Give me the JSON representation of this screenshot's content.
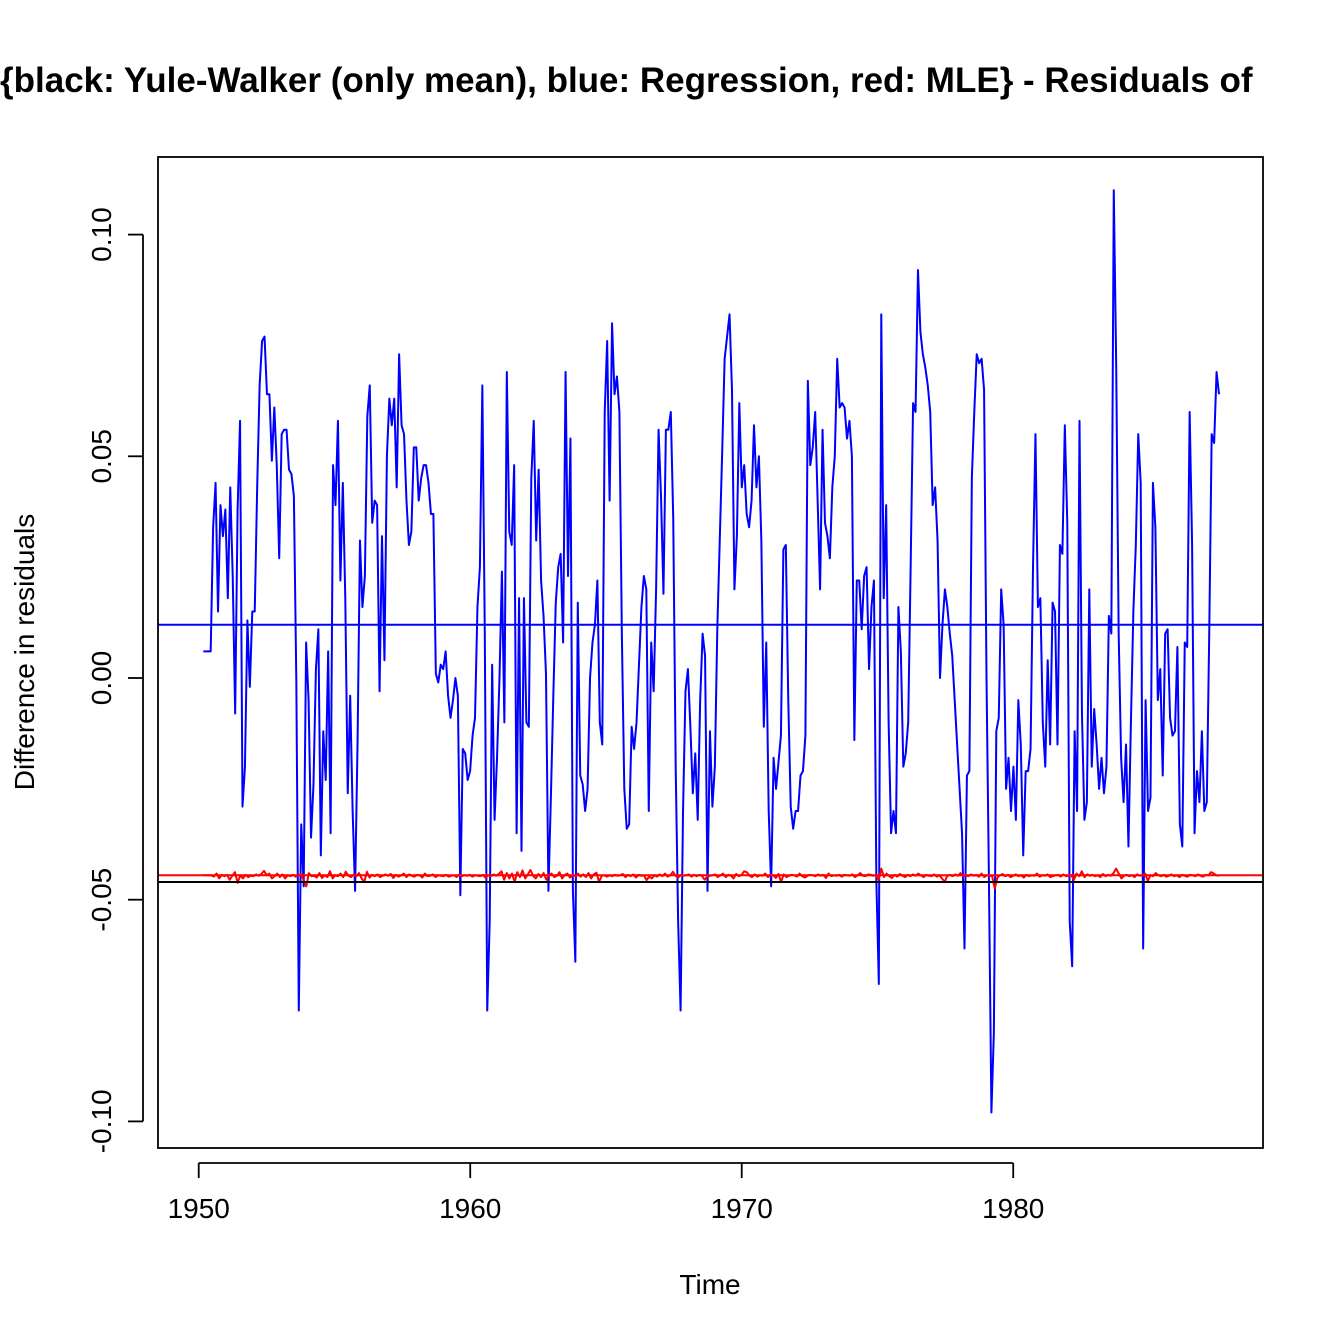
{
  "chart_data": {
    "type": "line",
    "title": "{black: Yule-Walker (only mean), blue: Regression, red: MLE} - Residuals of",
    "xlabel": "Time",
    "ylabel": "Difference in residuals",
    "xlim": [
      1948.5,
      1989.2
    ],
    "ylim": [
      -0.106,
      0.1175
    ],
    "x_ticks": [
      1950,
      1960,
      1970,
      1980
    ],
    "x_tick_labels": [
      "1950",
      "1960",
      "1970",
      "1980"
    ],
    "y_ticks": [
      -0.1,
      -0.05,
      0.0,
      0.05,
      0.1
    ],
    "y_tick_labels": [
      "-0.10",
      "-0.05",
      "0.00",
      "0.05",
      "0.10"
    ],
    "grid": false,
    "legend": "none",
    "colors": {
      "black": "#000000",
      "blue": "#0000ff",
      "red": "#ff0000"
    },
    "hlines": [
      {
        "color": "#000000",
        "y": -0.046
      },
      {
        "color": "#0000ff",
        "y": 0.012
      },
      {
        "color": "#ff0000",
        "y": -0.0445
      }
    ],
    "series": [
      {
        "color": "#0000ff",
        "x_start": 1950.17,
        "x_end": 1987.58,
        "values": [
          0.006,
          0.006,
          0.006,
          0.006,
          0.034,
          0.044,
          0.015,
          0.039,
          0.032,
          0.038,
          0.018,
          0.043,
          0.023,
          -0.008,
          0.038,
          0.058,
          -0.029,
          -0.02,
          0.013,
          -0.002,
          0.015,
          0.015,
          0.043,
          0.066,
          0.076,
          0.077,
          0.064,
          0.064,
          0.049,
          0.061,
          0.048,
          0.027,
          0.055,
          0.056,
          0.056,
          0.047,
          0.046,
          0.041,
          -0.001,
          -0.075,
          -0.033,
          -0.047,
          0.008,
          -0.005,
          -0.036,
          -0.024,
          0.002,
          0.011,
          -0.04,
          -0.012,
          -0.023,
          0.006,
          -0.035,
          0.048,
          0.039,
          0.058,
          0.022,
          0.044,
          0.018,
          -0.026,
          -0.004,
          -0.03,
          -0.048,
          -0.015,
          0.031,
          0.016,
          0.023,
          0.059,
          0.066,
          0.035,
          0.04,
          0.039,
          -0.003,
          0.032,
          0.004,
          0.05,
          0.063,
          0.057,
          0.063,
          0.043,
          0.073,
          0.057,
          0.055,
          0.04,
          0.03,
          0.033,
          0.052,
          0.052,
          0.04,
          0.045,
          0.048,
          0.048,
          0.044,
          0.037,
          0.037,
          0.001,
          -0.001,
          0.003,
          0.002,
          0.006,
          -0.004,
          -0.009,
          -0.005,
          0.0,
          -0.004,
          -0.049,
          -0.016,
          -0.017,
          -0.023,
          -0.021,
          -0.013,
          -0.009,
          0.016,
          0.025,
          0.066,
          0.01,
          -0.075,
          -0.055,
          0.003,
          -0.032,
          -0.018,
          0.0,
          0.024,
          -0.01,
          0.069,
          0.033,
          0.03,
          0.048,
          -0.035,
          0.018,
          -0.039,
          0.018,
          -0.01,
          -0.011,
          0.045,
          0.058,
          0.031,
          0.047,
          0.022,
          0.014,
          0.001,
          -0.048,
          -0.027,
          -0.004,
          0.017,
          0.025,
          0.028,
          0.008,
          0.069,
          0.023,
          0.054,
          -0.048,
          -0.064,
          0.017,
          -0.022,
          -0.024,
          -0.03,
          -0.025,
          0.0,
          0.008,
          0.012,
          0.022,
          -0.01,
          -0.015,
          0.06,
          0.076,
          0.04,
          0.08,
          0.064,
          0.068,
          0.06,
          0.01,
          -0.025,
          -0.034,
          -0.033,
          -0.011,
          -0.016,
          -0.01,
          0.003,
          0.016,
          0.023,
          0.02,
          -0.03,
          0.008,
          -0.003,
          0.02,
          0.056,
          0.041,
          0.019,
          0.056,
          0.056,
          0.06,
          0.036,
          -0.02,
          -0.055,
          -0.075,
          -0.03,
          -0.003,
          0.002,
          -0.011,
          -0.026,
          -0.017,
          -0.032,
          -0.005,
          0.01,
          0.005,
          -0.048,
          -0.012,
          -0.029,
          -0.02,
          0.011,
          0.031,
          0.051,
          0.072,
          0.077,
          0.082,
          0.065,
          0.02,
          0.032,
          0.062,
          0.043,
          0.048,
          0.037,
          0.034,
          0.04,
          0.057,
          0.043,
          0.05,
          0.031,
          -0.011,
          0.008,
          -0.03,
          -0.047,
          -0.018,
          -0.025,
          -0.019,
          -0.013,
          0.029,
          0.03,
          -0.005,
          -0.029,
          -0.034,
          -0.03,
          -0.03,
          -0.022,
          -0.021,
          -0.013,
          0.067,
          0.048,
          0.052,
          0.06,
          0.04,
          0.02,
          0.056,
          0.035,
          0.032,
          0.027,
          0.043,
          0.05,
          0.072,
          0.061,
          0.062,
          0.061,
          0.054,
          0.058,
          0.05,
          -0.014,
          0.022,
          0.022,
          0.011,
          0.023,
          0.025,
          0.002,
          0.016,
          0.022,
          -0.046,
          -0.069,
          0.082,
          0.018,
          0.039,
          -0.01,
          -0.035,
          -0.03,
          -0.035,
          0.016,
          0.006,
          -0.02,
          -0.017,
          -0.01,
          0.025,
          0.062,
          0.06,
          0.092,
          0.078,
          0.073,
          0.07,
          0.066,
          0.06,
          0.039,
          0.043,
          0.031,
          0.0,
          0.012,
          0.02,
          0.016,
          0.01,
          0.005,
          -0.005,
          -0.015,
          -0.025,
          -0.035,
          -0.061,
          -0.022,
          -0.021,
          0.045,
          0.06,
          0.073,
          0.071,
          0.072,
          0.065,
          0.0,
          -0.046,
          -0.098,
          -0.08,
          -0.012,
          -0.009,
          0.02,
          0.012,
          -0.025,
          -0.018,
          -0.03,
          -0.02,
          -0.032,
          -0.005,
          -0.015,
          -0.04,
          -0.021,
          -0.021,
          -0.016,
          0.025,
          0.055,
          0.016,
          0.018,
          -0.01,
          -0.02,
          0.004,
          -0.015,
          0.017,
          0.015,
          -0.015,
          0.03,
          0.028,
          0.057,
          0.035,
          -0.055,
          -0.065,
          -0.012,
          -0.03,
          0.058,
          -0.008,
          -0.032,
          -0.028,
          0.02,
          -0.02,
          -0.007,
          -0.015,
          -0.025,
          -0.018,
          -0.026,
          -0.02,
          0.014,
          0.01,
          0.11,
          0.07,
          0.01,
          -0.018,
          -0.028,
          -0.015,
          -0.038,
          -0.01,
          0.015,
          0.03,
          0.055,
          0.044,
          -0.061,
          -0.005,
          -0.03,
          -0.027,
          0.044,
          0.034,
          -0.005,
          0.002,
          -0.022,
          0.01,
          0.011,
          -0.009,
          -0.013,
          -0.012,
          0.007,
          -0.033,
          -0.038,
          0.008,
          0.007,
          0.06,
          0.03,
          -0.035,
          -0.021,
          -0.028,
          -0.012,
          -0.03,
          -0.028,
          0.01,
          0.055,
          0.053,
          0.069,
          0.064
        ]
      },
      {
        "color": "#ff0000",
        "x_start": 1950.17,
        "x_end": 1987.58,
        "values": [
          -0.0445,
          -0.0445,
          -0.0445,
          -0.0445,
          -0.0448,
          -0.0441,
          -0.0452,
          -0.0444,
          -0.0447,
          -0.0444,
          -0.0455,
          -0.0446,
          -0.0438,
          -0.0462,
          -0.0445,
          -0.0452,
          -0.0444,
          -0.0449,
          -0.0446,
          -0.0447,
          -0.0443,
          -0.0446,
          -0.0442,
          -0.0435,
          -0.0445,
          -0.0441,
          -0.0452,
          -0.0447,
          -0.0441,
          -0.0449,
          -0.0443,
          -0.0452,
          -0.0445,
          -0.0447,
          -0.0444,
          -0.0448,
          -0.0446,
          -0.0442,
          -0.0455,
          -0.047,
          -0.044,
          -0.0447,
          -0.0446,
          -0.045,
          -0.044,
          -0.0451,
          -0.0445,
          -0.0449,
          -0.0436,
          -0.0452,
          -0.0445,
          -0.0447,
          -0.0441,
          -0.0449,
          -0.0437,
          -0.0446,
          -0.0449,
          -0.0443,
          -0.0447,
          -0.044,
          -0.0452,
          -0.046,
          -0.0437,
          -0.045,
          -0.0444,
          -0.0447,
          -0.0443,
          -0.0449,
          -0.0446,
          -0.0443,
          -0.0446,
          -0.0442,
          -0.0451,
          -0.0444,
          -0.0448,
          -0.0445,
          -0.0441,
          -0.0449,
          -0.0443,
          -0.0446,
          -0.0448,
          -0.0444,
          -0.0445,
          -0.045,
          -0.0441,
          -0.0447,
          -0.0446,
          -0.0443,
          -0.0449,
          -0.0445,
          -0.0446,
          -0.0447,
          -0.0444,
          -0.0448,
          -0.0446,
          -0.0445,
          -0.0449,
          -0.0443,
          -0.0447,
          -0.0445,
          -0.0446,
          -0.0444,
          -0.0448,
          -0.0445,
          -0.0446,
          -0.0447,
          -0.0444,
          -0.0451,
          -0.0445,
          -0.0447,
          -0.0443,
          -0.0446,
          -0.0442,
          -0.0436,
          -0.0455,
          -0.044,
          -0.0452,
          -0.0441,
          -0.046,
          -0.0438,
          -0.0449,
          -0.0434,
          -0.0452,
          -0.0443,
          -0.0433,
          -0.0446,
          -0.0452,
          -0.0442,
          -0.0449,
          -0.044,
          -0.0455,
          -0.0444,
          -0.0441,
          -0.0449,
          -0.0446,
          -0.0438,
          -0.0452,
          -0.0444,
          -0.0441,
          -0.045,
          -0.0445,
          -0.0447,
          -0.0441,
          -0.0448,
          -0.0443,
          -0.0449,
          -0.044,
          -0.0452,
          -0.0443,
          -0.0439,
          -0.046,
          -0.0446,
          -0.0445,
          -0.0448,
          -0.0445,
          -0.0447,
          -0.0444,
          -0.0446,
          -0.0445,
          -0.0442,
          -0.0449,
          -0.0444,
          -0.0447,
          -0.0443,
          -0.045,
          -0.0444,
          -0.0446,
          -0.0445,
          -0.0456,
          -0.0448,
          -0.0452,
          -0.0445,
          -0.0448,
          -0.0443,
          -0.0447,
          -0.0441,
          -0.0448,
          -0.0445,
          -0.0437,
          -0.0446,
          -0.045,
          -0.0444,
          -0.0446,
          -0.0445,
          -0.0443,
          -0.0448,
          -0.0444,
          -0.0447,
          -0.0444,
          -0.0446,
          -0.0455,
          -0.0448,
          -0.0446,
          -0.0445,
          -0.0443,
          -0.0449,
          -0.0445,
          -0.0441,
          -0.0449,
          -0.0444,
          -0.0446,
          -0.0452,
          -0.0442,
          -0.0447,
          -0.0444,
          -0.0436,
          -0.0438,
          -0.0446,
          -0.0449,
          -0.0443,
          -0.0448,
          -0.0445,
          -0.0446,
          -0.0441,
          -0.0449,
          -0.0444,
          -0.0445,
          -0.0451,
          -0.0442,
          -0.046,
          -0.0443,
          -0.0449,
          -0.0446,
          -0.0444,
          -0.0445,
          -0.0448,
          -0.0441,
          -0.0447,
          -0.045,
          -0.0446,
          -0.0444,
          -0.0445,
          -0.0447,
          -0.0443,
          -0.0446,
          -0.0444,
          -0.0451,
          -0.0441,
          -0.0447,
          -0.0445,
          -0.0446,
          -0.0444,
          -0.0448,
          -0.0444,
          -0.0445,
          -0.0446,
          -0.0443,
          -0.0449,
          -0.0445,
          -0.044,
          -0.0446,
          -0.0447,
          -0.0443,
          -0.0444,
          -0.0446,
          -0.0445,
          -0.0455,
          -0.043,
          -0.0449,
          -0.0441,
          -0.0447,
          -0.0451,
          -0.0444,
          -0.0448,
          -0.0442,
          -0.0446,
          -0.0449,
          -0.0444,
          -0.0447,
          -0.0443,
          -0.0446,
          -0.0441,
          -0.0445,
          -0.0449,
          -0.0444,
          -0.0446,
          -0.0447,
          -0.0443,
          -0.0448,
          -0.0445,
          -0.0452,
          -0.046,
          -0.0446,
          -0.0444,
          -0.0447,
          -0.0443,
          -0.0446,
          -0.044,
          -0.0448,
          -0.0445,
          -0.0447,
          -0.0443,
          -0.0446,
          -0.0444,
          -0.0448,
          -0.0441,
          -0.0449,
          -0.0445,
          -0.0446,
          -0.0447,
          -0.0475,
          -0.045,
          -0.0445,
          -0.0442,
          -0.0447,
          -0.0444,
          -0.0449,
          -0.0446,
          -0.0443,
          -0.0447,
          -0.0445,
          -0.045,
          -0.0444,
          -0.0447,
          -0.0445,
          -0.0446,
          -0.0441,
          -0.0448,
          -0.0445,
          -0.0446,
          -0.0443,
          -0.0449,
          -0.0447,
          -0.0445,
          -0.0444,
          -0.0448,
          -0.0443,
          -0.0447,
          -0.0446,
          -0.0445,
          -0.0455,
          -0.0441,
          -0.0447,
          -0.0436,
          -0.0449,
          -0.0443,
          -0.0446,
          -0.0444,
          -0.0447,
          -0.0445,
          -0.0449,
          -0.0442,
          -0.0447,
          -0.0444,
          -0.0446,
          -0.044,
          -0.043,
          -0.0441,
          -0.0452,
          -0.0446,
          -0.0444,
          -0.0447,
          -0.0445,
          -0.0449,
          -0.0443,
          -0.0446,
          -0.0445,
          -0.0441,
          -0.0458,
          -0.0445,
          -0.0447,
          -0.044,
          -0.0445,
          -0.0447,
          -0.0444,
          -0.0448,
          -0.0446,
          -0.0443,
          -0.0447,
          -0.0445,
          -0.0449,
          -0.0444,
          -0.0446,
          -0.0448,
          -0.0444,
          -0.0445,
          -0.0447,
          -0.0443,
          -0.0446,
          -0.0448,
          -0.0444,
          -0.0445,
          -0.0438,
          -0.0441,
          -0.0445,
          -0.0446
        ]
      }
    ]
  }
}
